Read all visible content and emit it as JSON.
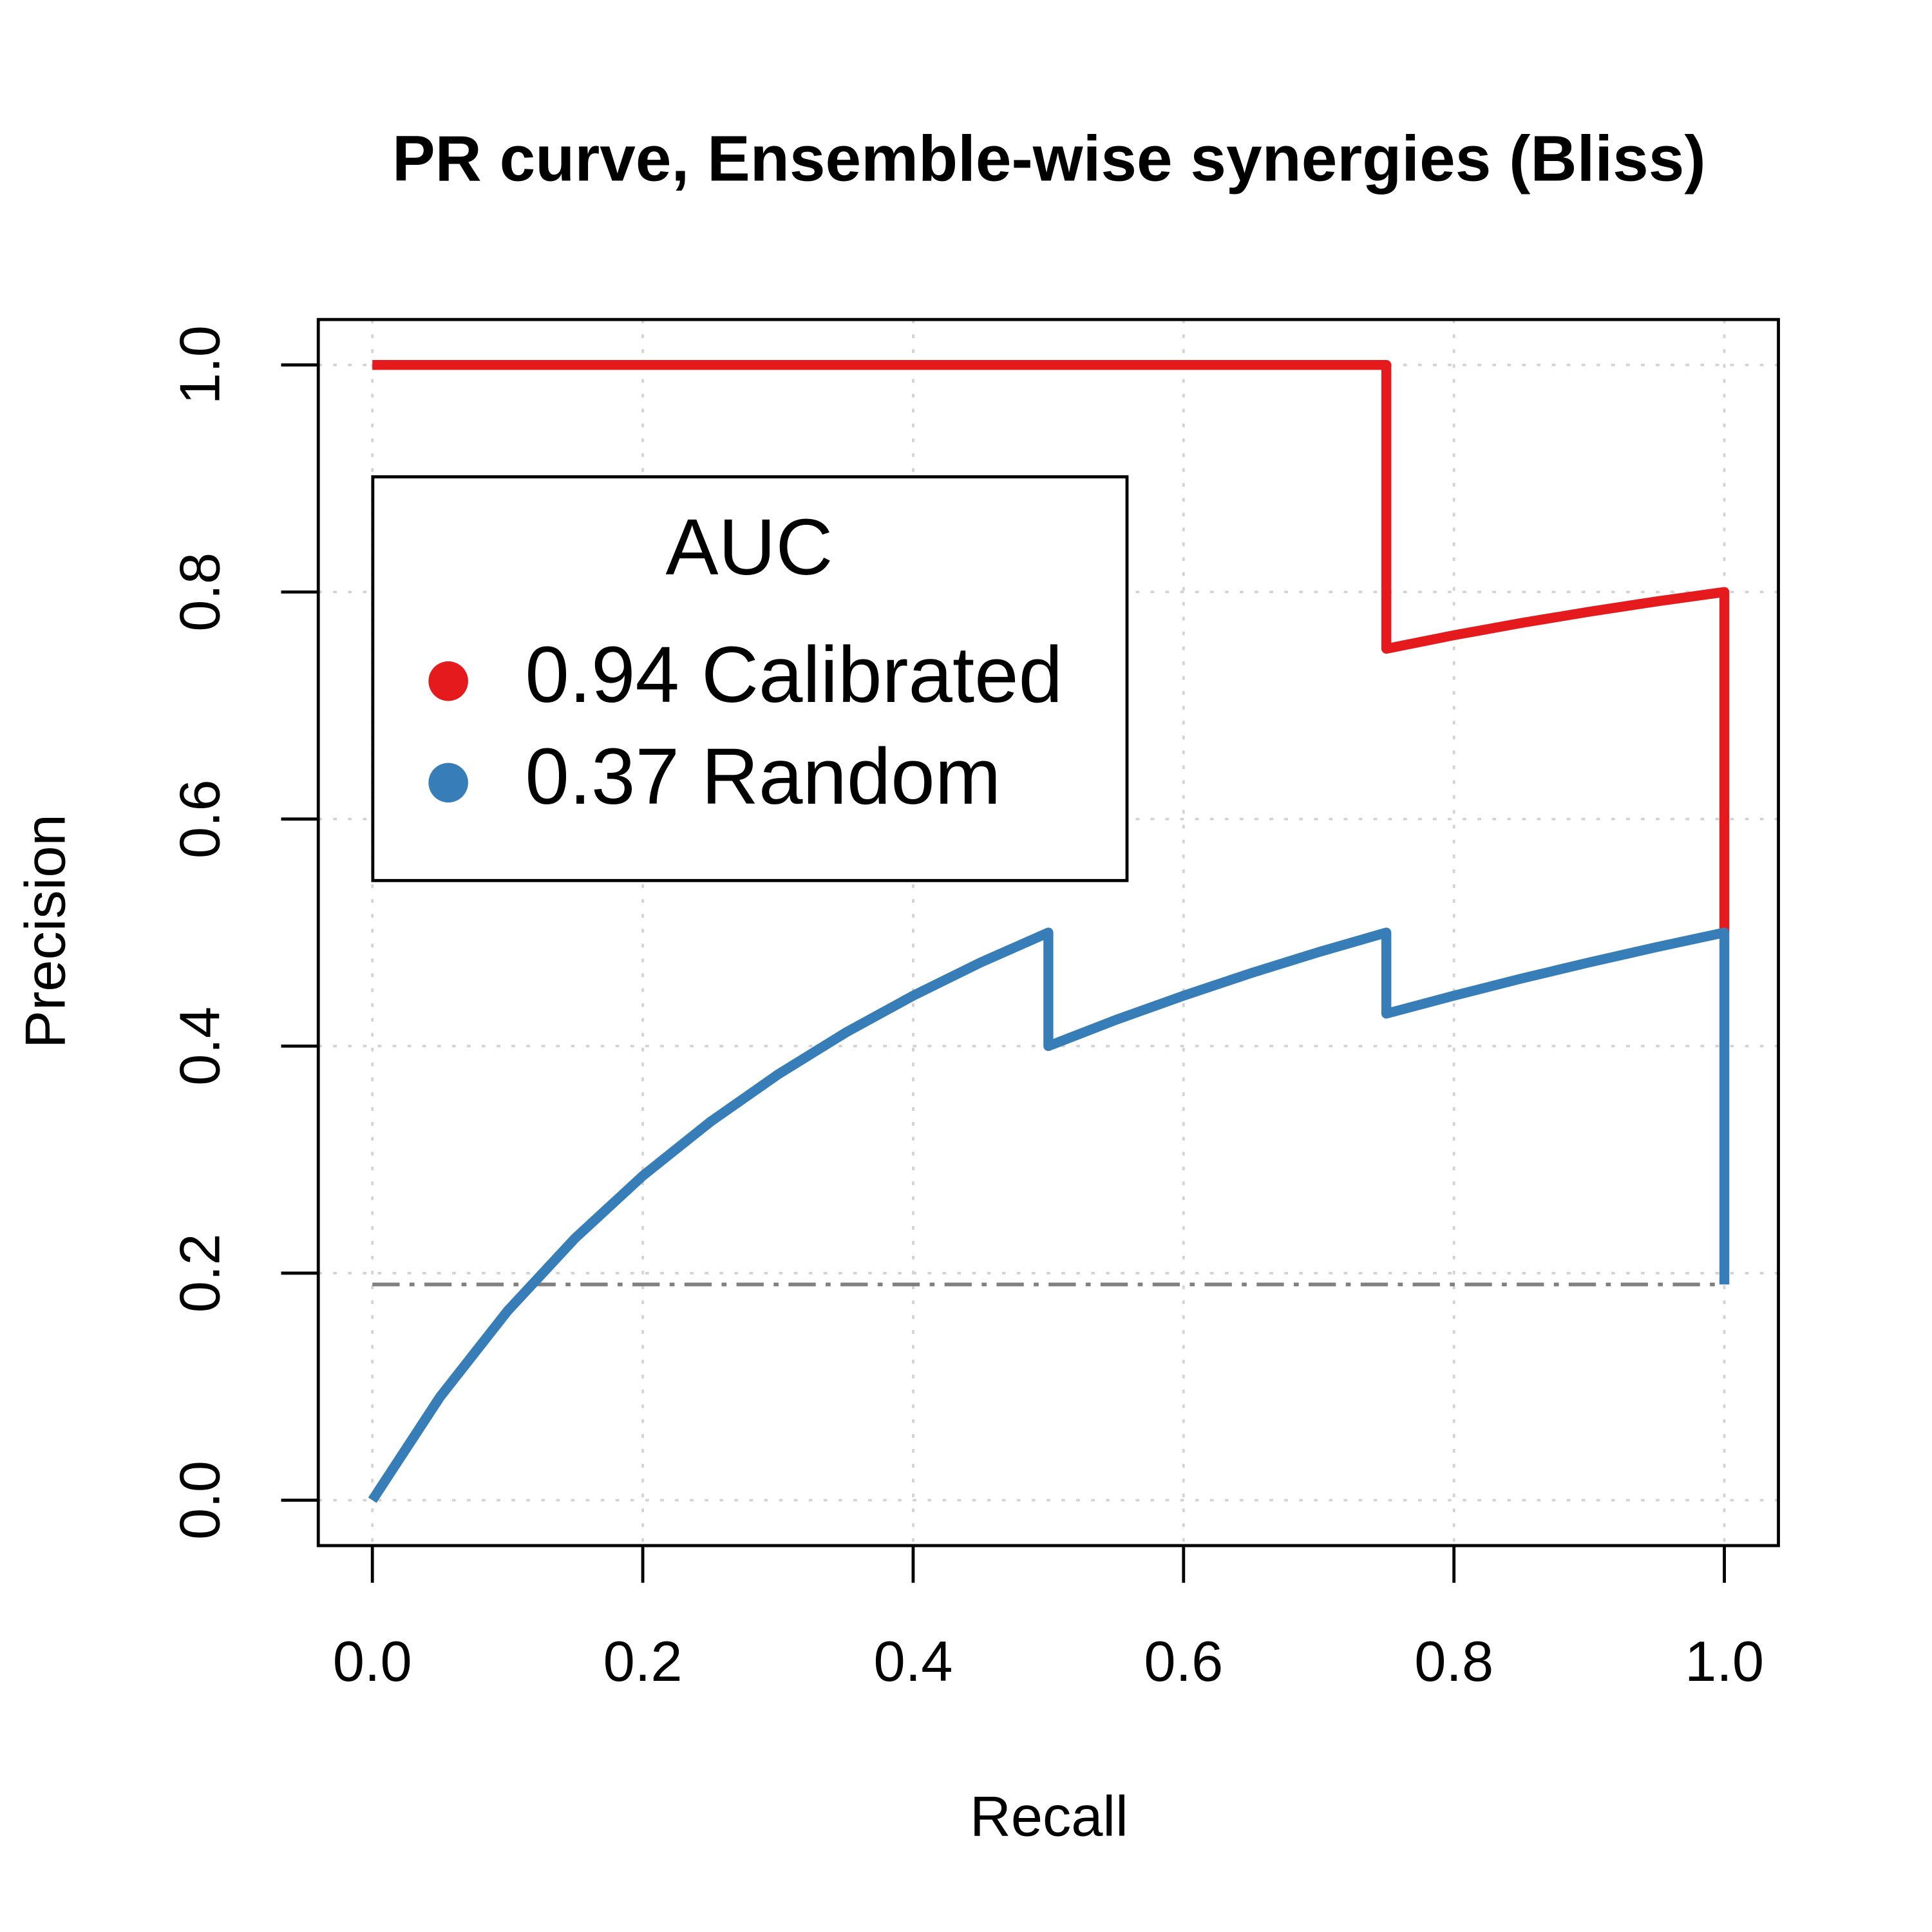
{
  "chart_data": {
    "type": "line",
    "title": "PR curve, Ensemble-wise synergies (Bliss)",
    "x_label": "Recall",
    "y_label": "Precision",
    "legend_title": "AUC",
    "series": [
      {
        "name": "0.94 Calibrated",
        "color": "#e41a1c",
        "x": [
          0,
          0.75,
          0.75,
          0.8,
          0.85,
          0.9,
          0.95,
          1,
          1
        ],
        "values": [
          1,
          1,
          0.75,
          0.7619,
          0.7727,
          0.7826,
          0.7917,
          0.8,
          0.5
        ]
      },
      {
        "name": "0.37 Random",
        "color": "#377eb8",
        "x": [
          0,
          0.05,
          0.1,
          0.15,
          0.2,
          0.25,
          0.3,
          0.35,
          0.4,
          0.45,
          0.5,
          0.5,
          0.55,
          0.6,
          0.65,
          0.7,
          0.75,
          0.75,
          0.8,
          0.85,
          0.9,
          0.95,
          1,
          1
        ],
        "values": [
          0,
          0.0909,
          0.1667,
          0.2308,
          0.2857,
          0.3333,
          0.375,
          0.4118,
          0.4444,
          0.4737,
          0.5,
          0.4,
          0.4231,
          0.4444,
          0.4643,
          0.4828,
          0.5,
          0.4286,
          0.4444,
          0.4595,
          0.4737,
          0.4872,
          0.5,
          0.19
        ]
      }
    ],
    "baseline": 0.19,
    "baseline_color": "#808080",
    "xlim": [
      -0.04,
      1.04
    ],
    "ylim": [
      -0.04,
      1.04
    ],
    "xticks": [
      {
        "value": 0,
        "label": "0.0"
      },
      0.2,
      0.4,
      0.6,
      0.8,
      {
        "value": 1,
        "label": "1.0"
      }
    ],
    "yticks": [
      {
        "value": 0,
        "label": "0.0"
      },
      0.2,
      0.4,
      0.6,
      0.8,
      {
        "value": 1,
        "label": "1.0"
      }
    ],
    "grid": true
  }
}
